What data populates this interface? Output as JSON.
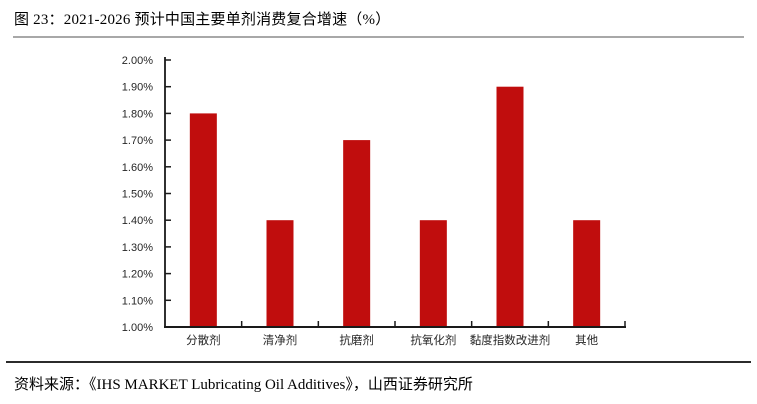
{
  "figure": {
    "title": "图 23：2021-2026 预计中国主要单剂消费复合增速（%）",
    "source": "资料来源：《IHS MARKET Lubricating Oil Additives》，山西证券研究所"
  },
  "chart_data": {
    "type": "bar",
    "title": "2021-2026 预计中国主要单剂消费复合增速（%）",
    "categories": [
      "分散剂",
      "清净剂",
      "抗磨剂",
      "抗氧化剂",
      "黏度指数改进剂",
      "其他"
    ],
    "values": [
      1.8,
      1.4,
      1.7,
      1.4,
      1.9,
      1.4
    ],
    "unit": "%",
    "xlabel": "",
    "ylabel": "",
    "ylim": [
      1.0,
      2.0
    ],
    "ytick_step": 0.1,
    "ytick_labels": [
      "1.00%",
      "1.10%",
      "1.20%",
      "1.30%",
      "1.40%",
      "1.50%",
      "1.60%",
      "1.70%",
      "1.80%",
      "1.90%",
      "2.00%"
    ],
    "grid": false,
    "legend_position": "none",
    "bar_color": "#c00d0d"
  },
  "colors": {
    "bar": "#c00d0d",
    "axis": "#1a1a1a",
    "tick_label": "#262626",
    "top_divider": "#a8a8a8",
    "bottom_divider": "#2b2b2b",
    "text": "#000000",
    "background": "#ffffff"
  }
}
